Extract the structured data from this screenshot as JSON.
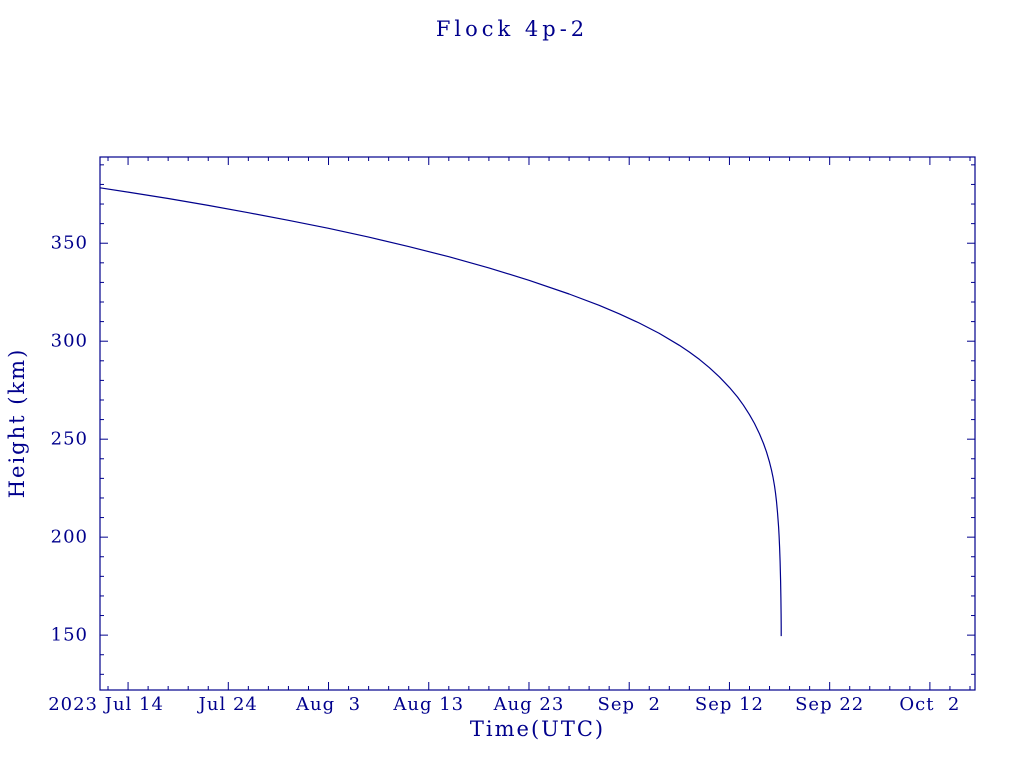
{
  "page": {
    "background_color": "#ffffff",
    "accent_color": "#00008c"
  },
  "chart_data": {
    "type": "line",
    "title": "Flock 4p-2",
    "xlabel": "Time(UTC)",
    "ylabel": "Height (km)",
    "x_unit": "days since 2023 Jul 14",
    "xlim": [
      -2.8,
      84.5
    ],
    "ylim": [
      122,
      394
    ],
    "grid": false,
    "legend": "none",
    "line_color": "#00008c",
    "axis_color": "#00008c",
    "x_ticks": [
      {
        "value": 0,
        "label": "2023 Jul 14",
        "dx": -22
      },
      {
        "value": 10,
        "label": "Jul 24"
      },
      {
        "value": 20,
        "label": "Aug  3"
      },
      {
        "value": 30,
        "label": "Aug 13"
      },
      {
        "value": 40,
        "label": "Aug 23"
      },
      {
        "value": 50,
        "label": "Sep  2"
      },
      {
        "value": 60,
        "label": "Sep 12"
      },
      {
        "value": 70,
        "label": "Sep 22"
      },
      {
        "value": 80,
        "label": "Oct  2"
      }
    ],
    "y_ticks": [
      {
        "value": 150,
        "label": "150"
      },
      {
        "value": 200,
        "label": "200"
      },
      {
        "value": 250,
        "label": "250"
      },
      {
        "value": 300,
        "label": "300"
      },
      {
        "value": 350,
        "label": "350"
      }
    ],
    "x_minor_step": 2,
    "y_minor_step": 10,
    "series": [
      {
        "name": "Flock 4p-2 height",
        "points": [
          [
            -2.8,
            378.3
          ],
          [
            0,
            376.1
          ],
          [
            4,
            372.8
          ],
          [
            8,
            369.3
          ],
          [
            12,
            365.6
          ],
          [
            16,
            361.7
          ],
          [
            20,
            357.6
          ],
          [
            24,
            353.1
          ],
          [
            28,
            348.3
          ],
          [
            32,
            343.1
          ],
          [
            36,
            337.4
          ],
          [
            40,
            331.1
          ],
          [
            44,
            324.1
          ],
          [
            47,
            318.3
          ],
          [
            49,
            314.0
          ],
          [
            51,
            309.3
          ],
          [
            53,
            304.0
          ],
          [
            55,
            297.9
          ],
          [
            56,
            294.5
          ],
          [
            57,
            290.7
          ],
          [
            58,
            286.5
          ],
          [
            59,
            281.8
          ],
          [
            60,
            276.4
          ],
          [
            60.8,
            271.5
          ],
          [
            61.4,
            267.3
          ],
          [
            62.0,
            262.5
          ],
          [
            62.5,
            258.0
          ],
          [
            63.0,
            252.7
          ],
          [
            63.4,
            247.8
          ],
          [
            63.7,
            243.5
          ],
          [
            64.0,
            238.3
          ],
          [
            64.2,
            234.2
          ],
          [
            64.35,
            230.6
          ],
          [
            64.5,
            226.2
          ],
          [
            64.6,
            222.6
          ],
          [
            64.7,
            218.2
          ],
          [
            64.8,
            212.6
          ],
          [
            64.85,
            209.2
          ],
          [
            64.9,
            205.2
          ],
          [
            64.95,
            200.5
          ],
          [
            65.0,
            194.7
          ],
          [
            65.05,
            187.5
          ],
          [
            65.1,
            177.5
          ],
          [
            65.13,
            168.9
          ],
          [
            65.15,
            160.7
          ],
          [
            65.16,
            154.6
          ],
          [
            65.165,
            149.5
          ]
        ]
      }
    ]
  }
}
